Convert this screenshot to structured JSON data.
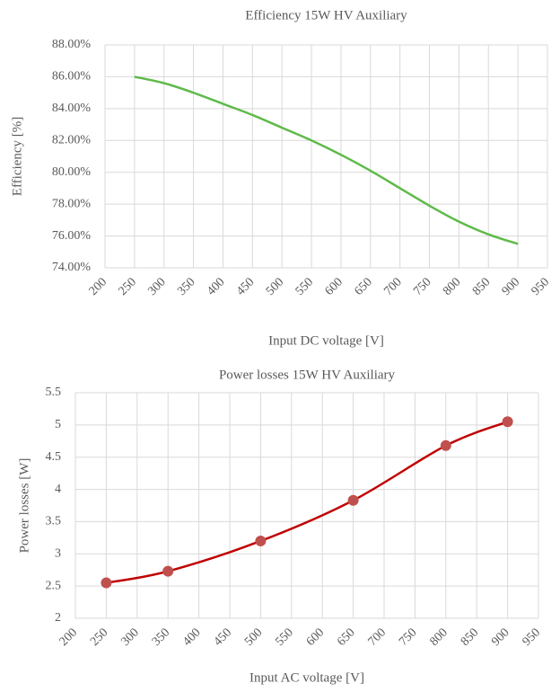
{
  "chart_data": [
    {
      "type": "line",
      "title": "Efficiency 15W HV Auxiliary",
      "xlabel": "Input DC voltage [V]",
      "ylabel": "Efficiency [%]",
      "x": [
        250,
        300,
        350,
        400,
        450,
        500,
        550,
        600,
        650,
        700,
        750,
        800,
        850,
        900
      ],
      "series": [
        {
          "name": "Efficiency",
          "color": "#5fba4a",
          "markers": false,
          "values": [
            86.0,
            85.6,
            85.0,
            84.3,
            83.6,
            82.8,
            82.0,
            81.1,
            80.1,
            79.0,
            77.9,
            76.9,
            76.1,
            75.5
          ]
        }
      ],
      "xlim": [
        200,
        950
      ],
      "xticks": [
        200,
        250,
        300,
        350,
        400,
        450,
        500,
        550,
        600,
        650,
        700,
        750,
        800,
        850,
        900,
        950
      ],
      "ylim": [
        74,
        88
      ],
      "yticks": [
        {
          "value": 74,
          "label": "74.00%"
        },
        {
          "value": 76,
          "label": "76.00%"
        },
        {
          "value": 78,
          "label": "78.00%"
        },
        {
          "value": 80,
          "label": "80.00%"
        },
        {
          "value": 82,
          "label": "82.00%"
        },
        {
          "value": 84,
          "label": "84.00%"
        },
        {
          "value": 86,
          "label": "86.00%"
        },
        {
          "value": 88,
          "label": "88.00%"
        }
      ],
      "grid": true
    },
    {
      "type": "line",
      "title": "Power losses 15W HV Auxiliary",
      "xlabel": "Input AC voltage [V]",
      "ylabel": "Power losses [W]",
      "x": [
        250,
        350,
        500,
        650,
        800,
        900
      ],
      "series": [
        {
          "name": "Power losses",
          "color": "#c00000",
          "marker_color": "#c0504d",
          "markers": true,
          "values": [
            2.55,
            2.73,
            3.2,
            3.83,
            4.68,
            5.05
          ]
        }
      ],
      "xlim": [
        200,
        950
      ],
      "xticks": [
        200,
        250,
        300,
        350,
        400,
        450,
        500,
        550,
        600,
        650,
        700,
        750,
        800,
        850,
        900,
        950
      ],
      "ylim": [
        2,
        5.5
      ],
      "yticks": [
        2,
        2.5,
        3,
        3.5,
        4,
        4.5,
        5,
        5.5
      ],
      "grid": true
    }
  ]
}
